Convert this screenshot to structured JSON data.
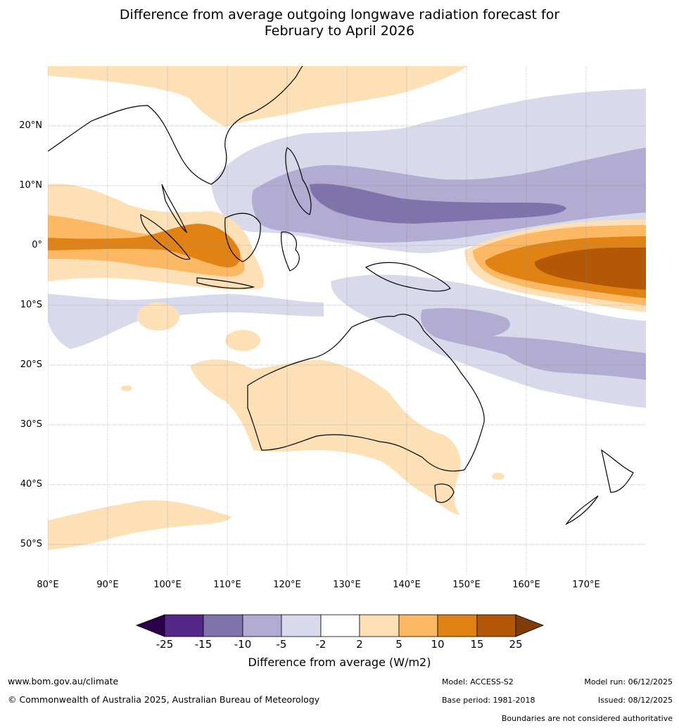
{
  "title": {
    "line1": "Difference from average outgoing longwave radiation forecast for",
    "line2": "February to April 2026"
  },
  "map": {
    "lat_labels": [
      "20°N",
      "10°N",
      "0°",
      "10°S",
      "20°S",
      "30°S",
      "40°S",
      "50°S"
    ],
    "lon_labels": [
      "80°E",
      "90°E",
      "100°E",
      "110°E",
      "120°E",
      "130°E",
      "140°E",
      "150°E",
      "160°E",
      "170°E"
    ],
    "lat_values": [
      20,
      10,
      0,
      -10,
      -20,
      -30,
      -40,
      -50
    ],
    "lon_values": [
      80,
      90,
      100,
      110,
      120,
      130,
      140,
      150,
      160,
      170
    ],
    "extent": {
      "lon_min": 80,
      "lon_max": 180,
      "lat_min": -55,
      "lat_max": 30
    },
    "colors": {
      "neg25": "#2d004b",
      "neg15": "#542788",
      "neg10": "#8073ac",
      "neg5": "#b2abd2",
      "neg2": "#d8daeb",
      "neutral": "#ffffff",
      "pos2": "#fee0b6",
      "pos5": "#fdb863",
      "pos10": "#e08214",
      "pos15": "#b35806",
      "pos25": "#7f3b08",
      "land_outline": "#000000",
      "border": "#888888"
    }
  },
  "colorbar": {
    "ticks": [
      "-25",
      "-15",
      "-10",
      "-5",
      "-2",
      "2",
      "5",
      "10",
      "15",
      "25"
    ],
    "label": "Difference from average (W/m2)"
  },
  "footer": {
    "website": "www.bom.gov.au/climate",
    "copyright": "© Commonwealth of Australia 2025, Australian Bureau of Meteorology",
    "model": "Model: ACCESS-S2",
    "base_period": "Base period: 1981-2018",
    "model_run": "Model run: 06/12/2025",
    "issued": "Issued: 08/12/2025",
    "disclaimer": "Boundaries are not considered authoritative"
  }
}
